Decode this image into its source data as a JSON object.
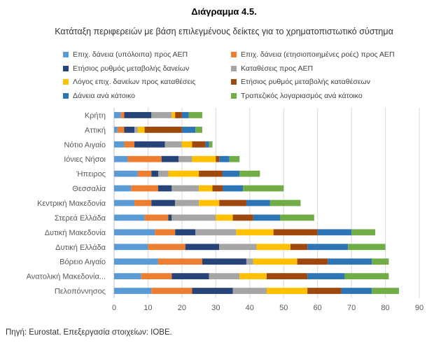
{
  "header": {
    "title": "Διάγραμμα 4.5.",
    "subtitle": "Κατάταξη περιφερειών με βάση επιλεγμένους δείκτες για το χρηματοπιστωτικό σύστημα"
  },
  "footer": {
    "source": "Πηγή: Eurostat. Επεξεργασία στοιχείων: ΙΟΒΕ."
  },
  "chart_data": {
    "type": "bar",
    "orientation": "horizontal",
    "stacked": true,
    "title": "",
    "xlabel": "",
    "ylabel": "",
    "xlim": [
      0,
      90
    ],
    "xticks": [
      0,
      10,
      20,
      30,
      40,
      50,
      60,
      70,
      80,
      90
    ],
    "grid": "vertical",
    "legend_position": "top",
    "categories": [
      "Κρήτη",
      "Αττική",
      "Νότιο Αιγαίο",
      "Ιόνιες Νήσοι",
      "Ήπειρος",
      "Θεσσαλία",
      "Κεντρική Μακεδονία",
      "Στερεά Ελλάδα",
      "Δυτική Μακεδονία",
      "Δυτική Ελλάδα",
      "Βόρειο Αιγαίο",
      "Ανατολική Μακεδονία...",
      "Πελοπόννησος"
    ],
    "series": [
      {
        "name": "Επιχ. δάνεια (υπόλοιπα) προς ΑΕΠ",
        "color": "#5B9BD5",
        "values": [
          2,
          1,
          3,
          4,
          7,
          5,
          6,
          9,
          12,
          10,
          13,
          8,
          11
        ]
      },
      {
        "name": "Επιχ. δάνεια (ετησιοποιημένες ροές) προς ΑΕΠ",
        "color": "#ED7D31",
        "values": [
          1,
          2,
          3,
          10,
          4,
          8,
          5,
          7,
          6,
          11,
          13,
          9,
          12
        ]
      },
      {
        "name": "Ετήσιος ρυθμός μεταβολής δανείων",
        "color": "#264478",
        "values": [
          8,
          3,
          9,
          5,
          2,
          4,
          7,
          1,
          6,
          10,
          13,
          11,
          12
        ]
      },
      {
        "name": "Καταθέσεις προς ΑΕΠ",
        "color": "#A5A5A5",
        "values": [
          6,
          1,
          5,
          4,
          3,
          8,
          7,
          13,
          12,
          11,
          2,
          9,
          10
        ]
      },
      {
        "name": "Λόγος επιχ. δανείων προς καταθέσεις",
        "color": "#FFC000",
        "values": [
          1,
          2,
          3,
          7,
          9,
          4,
          6,
          5,
          11,
          10,
          13,
          8,
          12
        ]
      },
      {
        "name": "Ετήσιος ρυθμός μεταβολής καταθέσεων",
        "color": "#9E480E",
        "values": [
          2,
          11,
          4,
          1,
          7,
          3,
          8,
          6,
          13,
          5,
          9,
          12,
          10
        ]
      },
      {
        "name": "Δάνεια ανά κάτοικο",
        "color": "#2E75B6",
        "values": [
          2,
          4,
          1,
          3,
          5,
          6,
          7,
          8,
          10,
          12,
          13,
          11,
          9
        ]
      },
      {
        "name": "Τραπεζικός λογαριασμός ανά κάτοικο",
        "color": "#70AD47",
        "values": [
          4,
          2,
          1,
          3,
          6,
          12,
          9,
          10,
          7,
          11,
          5,
          13,
          8
        ]
      }
    ]
  }
}
